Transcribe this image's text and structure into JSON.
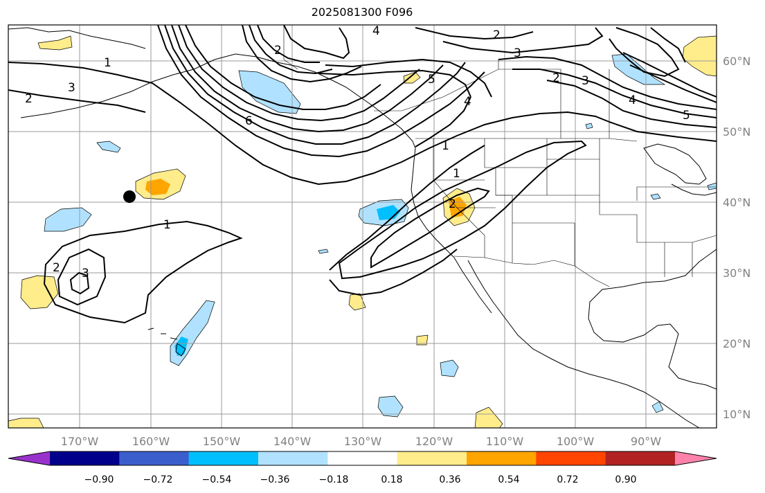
{
  "title": "2025081300 F096",
  "map": {
    "lat_labels": [
      "60°N",
      "50°N",
      "40°N",
      "30°N",
      "20°N",
      "10°N"
    ],
    "lon_labels": [
      "170°W",
      "160°W",
      "150°W",
      "140°W",
      "130°W",
      "120°W",
      "110°W",
      "100°W",
      "90°W"
    ],
    "contour_labels": [
      "1",
      "2",
      "3",
      "4",
      "5",
      "6",
      "2",
      "3",
      "4",
      "2",
      "3",
      "2",
      "1",
      "2",
      "1",
      "1",
      "2",
      "3",
      "4",
      "5"
    ]
  },
  "colorbar": {
    "ticks": [
      "−0.90",
      "−0.72",
      "−0.54",
      "−0.36",
      "−0.18",
      "0.18",
      "0.36",
      "0.54",
      "0.72",
      "0.90"
    ],
    "colors": [
      "#9932cc",
      "#00008b",
      "#3a5fcd",
      "#00bfff",
      "#b0e2ff",
      "#ffffff",
      "#ffec8b",
      "#ffa500",
      "#ff4500",
      "#b22222",
      "#ff82ab"
    ]
  },
  "colors": {
    "light_blue": "#b0e2ff",
    "deep_sky_blue": "#00bfff",
    "light_yellow": "#ffec8b",
    "orange": "#ffa500"
  }
}
